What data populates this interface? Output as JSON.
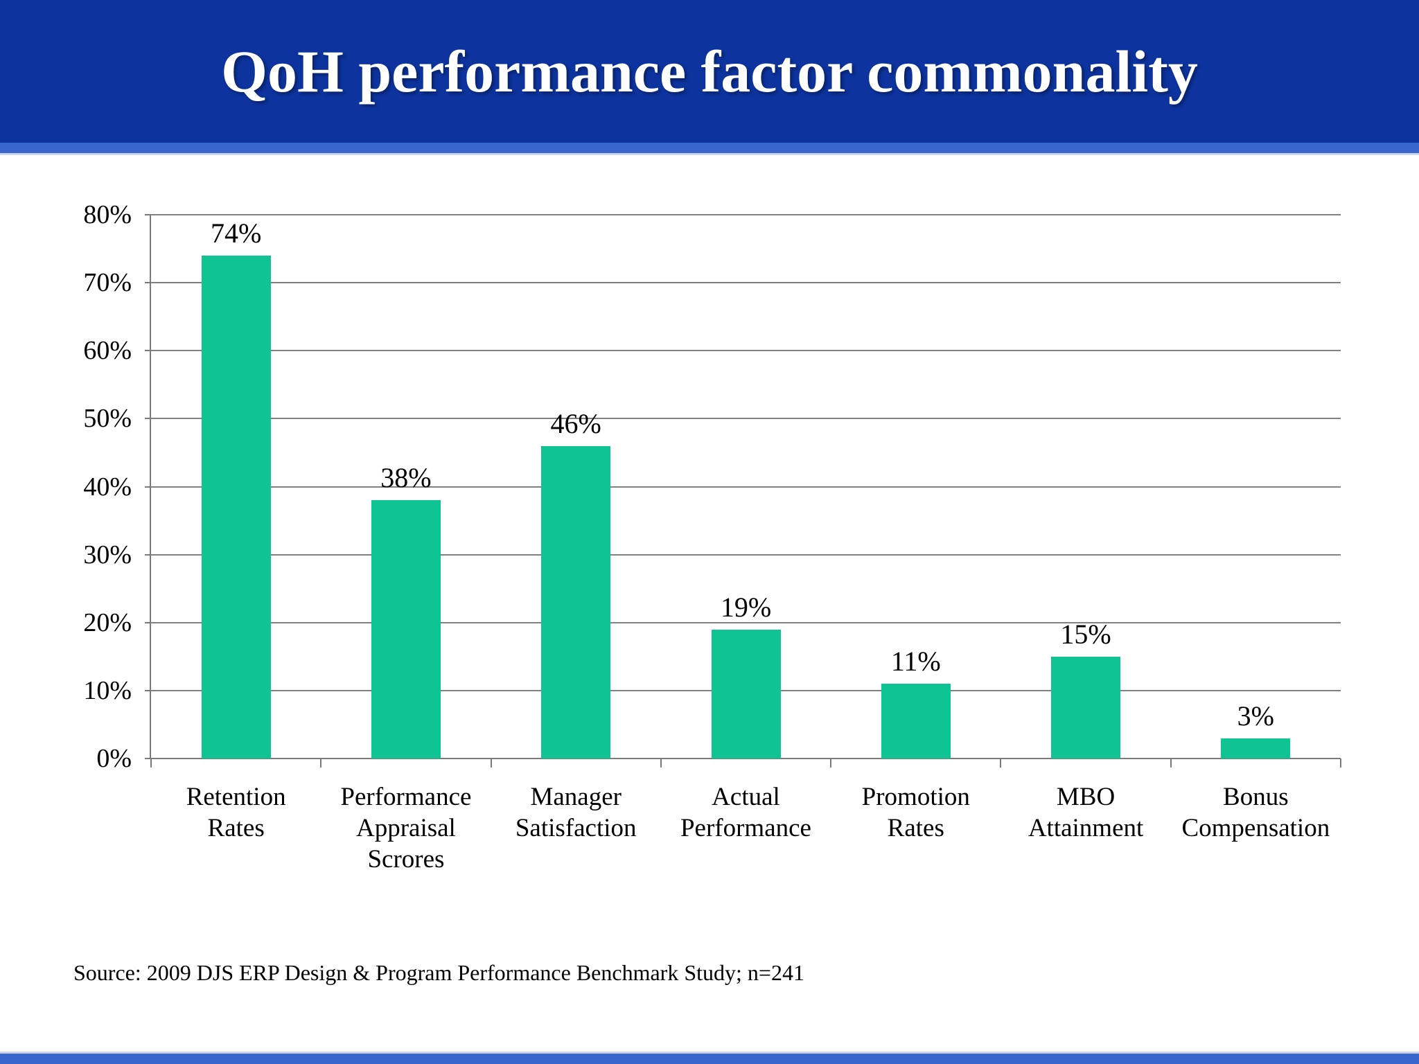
{
  "slide": {
    "title": "QoH performance factor commonality",
    "source": "Source: 2009 DJS ERP Design & Program Performance Benchmark Study; n=241"
  },
  "colors": {
    "header_bg": "#0d339e",
    "accent_band": "#3866cd",
    "band_highlight": "#ccd6f1",
    "bar_fill": "#0fc392",
    "gridline": "#818181",
    "axis": "#7a7a7a",
    "label_text": "#000000",
    "title_text": "#ffffff"
  },
  "chart_data": {
    "type": "bar",
    "title": "QoH performance factor commonality",
    "categories": [
      "Retention\nRates",
      "Performance\nAppraisal\nScrores",
      "Manager\nSatisfaction",
      "Actual\nPerformance",
      "Promotion\nRates",
      "MBO\nAttainment",
      "Bonus\nCompensation"
    ],
    "values": [
      74,
      38,
      46,
      19,
      11,
      15,
      3
    ],
    "value_labels": [
      "74%",
      "38%",
      "46%",
      "19%",
      "11%",
      "15%",
      "3%"
    ],
    "xlabel": "",
    "ylabel": "",
    "ylim": [
      0,
      80
    ],
    "ytick_step": 10,
    "ytick_labels": [
      "0%",
      "10%",
      "20%",
      "30%",
      "40%",
      "50%",
      "60%",
      "70%",
      "80%"
    ],
    "grid": true,
    "legend": false
  }
}
